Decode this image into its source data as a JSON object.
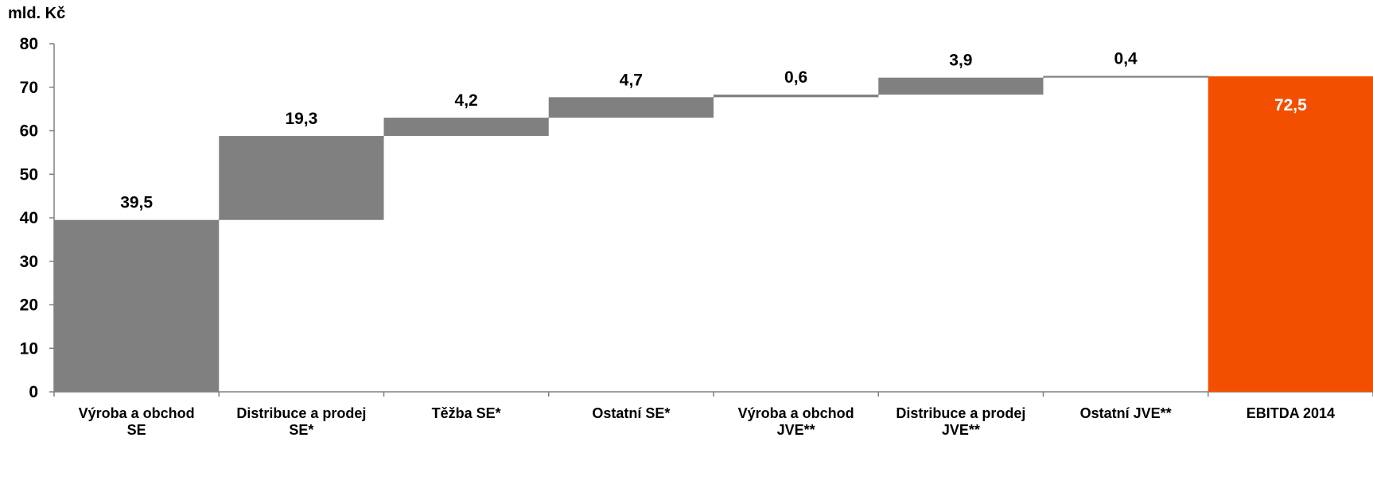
{
  "unit_label": "mld. Kč",
  "colors": {
    "bar": "#808080",
    "total": "#f25000",
    "total_label": "#ffffff",
    "axis": "#808080",
    "text": "#000000"
  },
  "chart_data": {
    "type": "bar",
    "subtype": "waterfall",
    "title": "",
    "xlabel": "",
    "ylabel": "mld. Kč",
    "ylim": [
      0,
      80
    ],
    "yticks": [
      0,
      10,
      20,
      30,
      40,
      50,
      60,
      70,
      80
    ],
    "grid": false,
    "categories": [
      [
        "Výroba a obchod",
        "SE"
      ],
      [
        "Distribuce a prodej",
        "SE*"
      ],
      [
        "Těžba SE*"
      ],
      [
        "Ostatní SE*"
      ],
      [
        "Výroba a obchod",
        "JVE**"
      ],
      [
        "Distribuce a prodej",
        "JVE**"
      ],
      [
        "Ostatní JVE**"
      ],
      [
        "EBITDA  2014"
      ]
    ],
    "values": [
      39.5,
      19.3,
      4.2,
      4.7,
      0.6,
      3.9,
      0.4,
      72.5
    ],
    "value_labels": [
      "39,5",
      "19,3",
      "4,2",
      "4,7",
      "0,6",
      "3,9",
      "0,4",
      "72,5"
    ],
    "is_total": [
      false,
      false,
      false,
      false,
      false,
      false,
      false,
      true
    ]
  }
}
